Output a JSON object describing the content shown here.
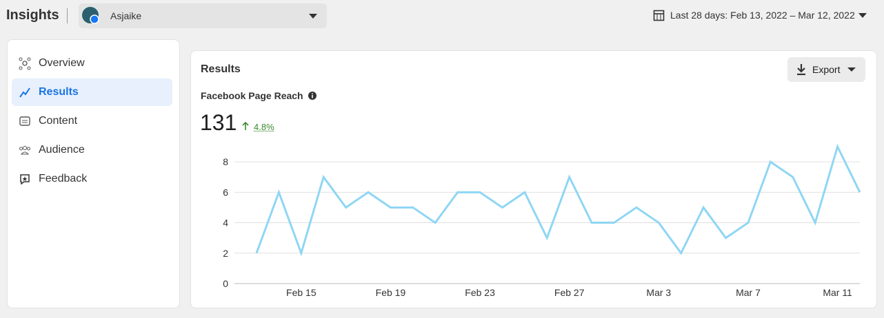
{
  "header": {
    "title": "Insights",
    "account": "Asjaike",
    "date_range": "Last 28 days: Feb 13, 2022 – Mar 12, 2022"
  },
  "nav": {
    "items": [
      "Overview",
      "Results",
      "Content",
      "Audience",
      "Feedback"
    ]
  },
  "panel": {
    "title": "Results",
    "export": "Export",
    "metric_label": "Facebook Page Reach",
    "metric_value": 131,
    "change": "4.8%"
  },
  "chart_data": {
    "type": "line",
    "categories": [
      null,
      null,
      "Feb 15",
      null,
      null,
      null,
      "Feb 19",
      null,
      null,
      null,
      "Feb 23",
      null,
      null,
      null,
      "Feb 27",
      null,
      null,
      null,
      "Mar 3",
      null,
      null,
      null,
      "Mar 7",
      null,
      null,
      null,
      "Mar 11",
      null
    ],
    "values": [
      2,
      6,
      2,
      7,
      5,
      6,
      5,
      5,
      4,
      6,
      6,
      5,
      6,
      3,
      7,
      4,
      4,
      5,
      4,
      2,
      5,
      3,
      4,
      8,
      7,
      4,
      9,
      6
    ],
    "color": "#8fd6f4",
    "ylim": [
      0,
      9
    ],
    "yticks": [
      0,
      2,
      4,
      6,
      8
    ],
    "grid": true
  }
}
